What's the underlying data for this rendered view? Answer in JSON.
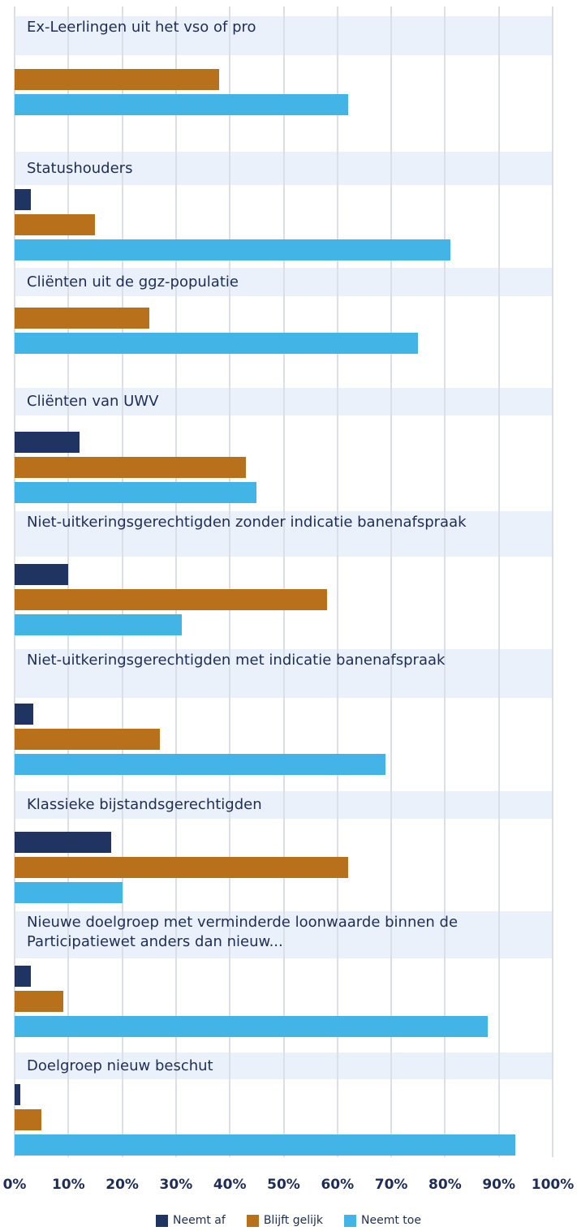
{
  "chart_data": {
    "type": "bar",
    "orientation": "horizontal",
    "categories": [
      "Ex-Leerlingen uit het vso of pro",
      "Statushouders",
      "Cliënten uit de ggz-populatie",
      "Cliënten van UWV",
      "Niet-uitkeringsgerechtigden zonder indicatie banenafspraak",
      "Niet-uitkeringsgerechtigden met indicatie banenafspraak",
      "Klassieke bijstandsgerechtigden",
      "Nieuwe doelgroep met verminderde loonwaarde binnen de Participatiewet anders dan nieuw...",
      "Doelgroep nieuw beschut"
    ],
    "series": [
      {
        "name": "Neemt af",
        "color": "#1f3461",
        "values": [
          null,
          3,
          null,
          12,
          10,
          3.5,
          18,
          3,
          1
        ]
      },
      {
        "name": "Blijft gelijk",
        "color": "#b8701a",
        "values": [
          38,
          15,
          25,
          43,
          58,
          27,
          62,
          9,
          5
        ]
      },
      {
        "name": "Neemt toe",
        "color": "#42b4e6",
        "values": [
          62,
          81,
          75,
          45,
          31,
          69,
          20,
          88,
          93
        ]
      }
    ],
    "xlim": [
      0,
      100
    ],
    "xticks": [
      {
        "value": 0,
        "label": "0%"
      },
      {
        "value": 10,
        "label": "10%"
      },
      {
        "value": 20,
        "label": "20%"
      },
      {
        "value": 30,
        "label": "30%"
      },
      {
        "value": 40,
        "label": "40%"
      },
      {
        "value": 50,
        "label": "50%"
      },
      {
        "value": 60,
        "label": "60%"
      },
      {
        "value": 70,
        "label": "70%"
      },
      {
        "value": 80,
        "label": "80%"
      },
      {
        "value": 90,
        "label": "90%"
      },
      {
        "value": 100,
        "label": "100%"
      }
    ],
    "grid": true,
    "legend": "bottom"
  }
}
